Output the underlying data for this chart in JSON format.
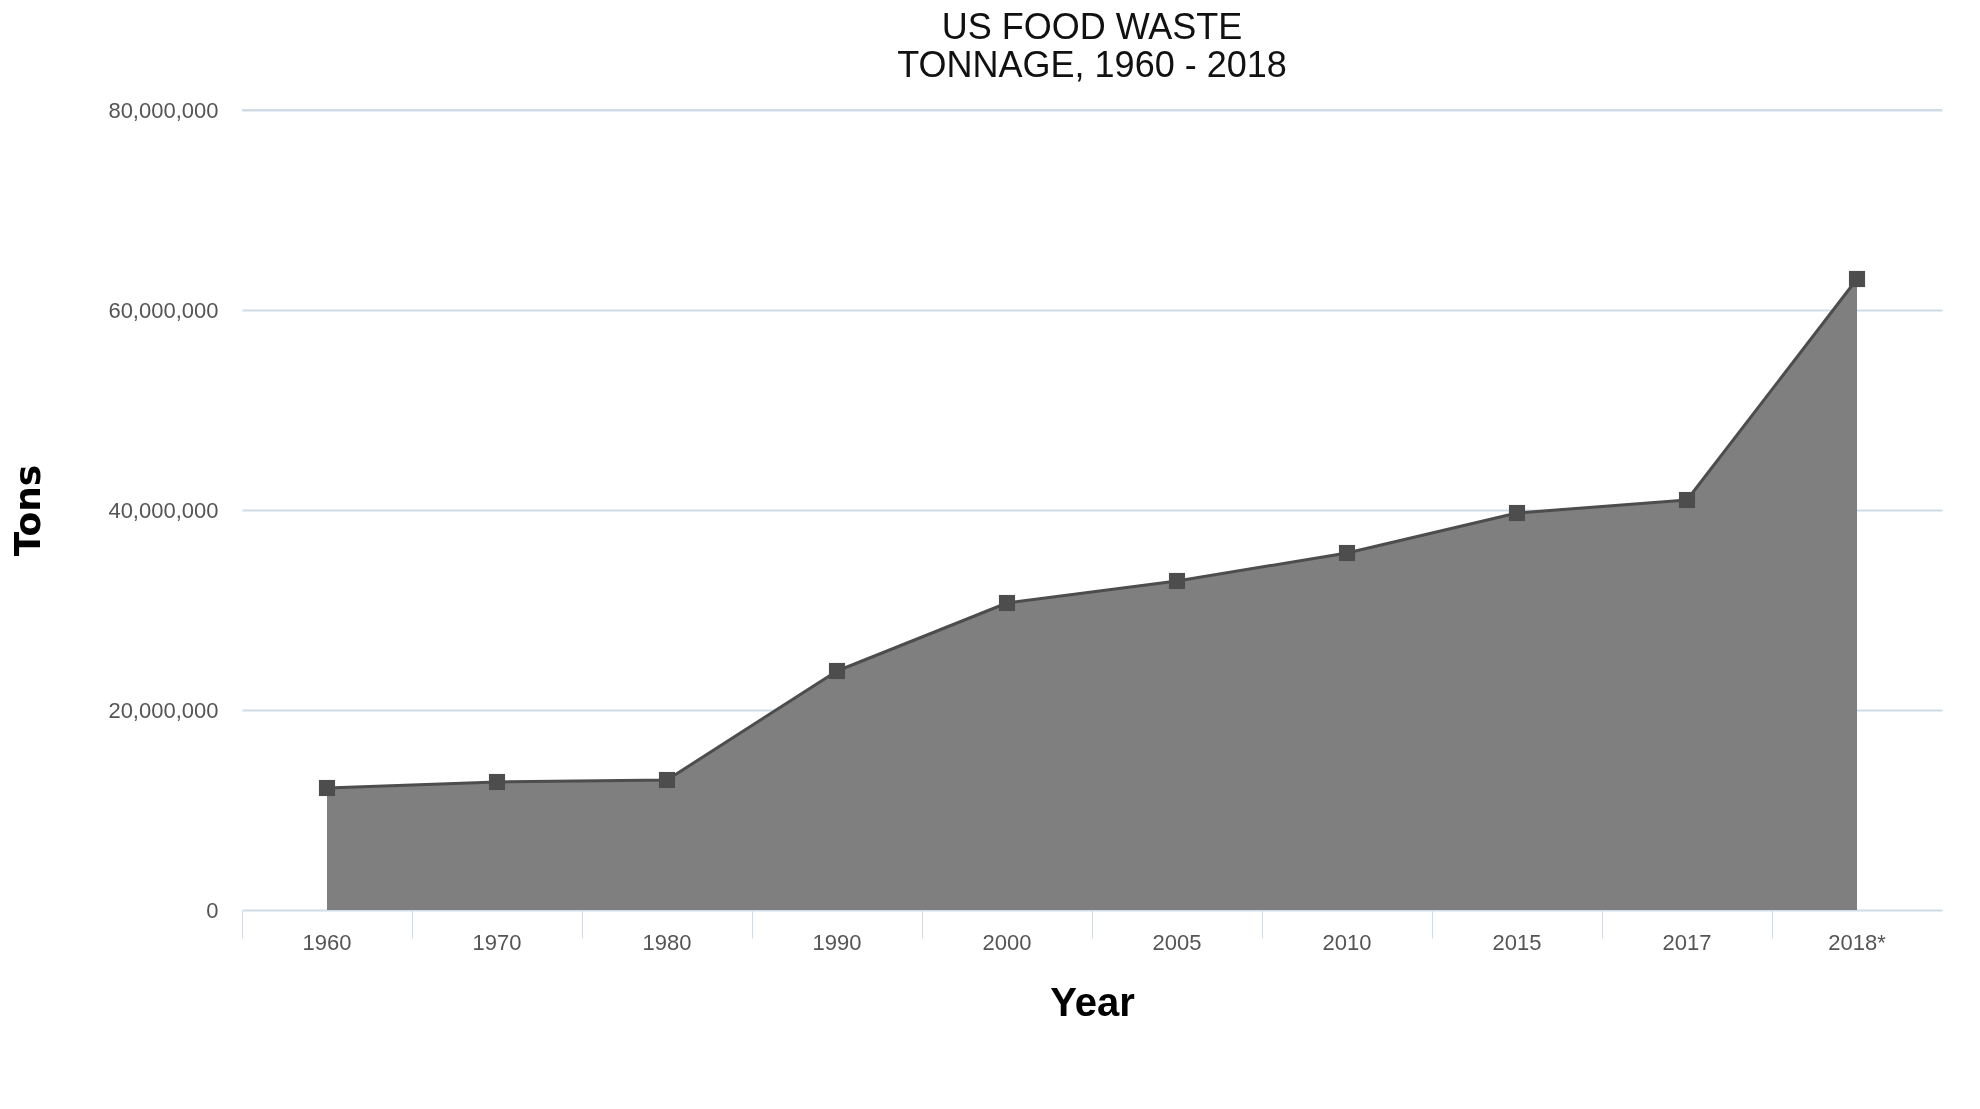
{
  "chart_data": {
    "type": "area",
    "title": "US FOOD WASTE\nTONNAGE, 1960 - 2018",
    "xlabel": "Year",
    "ylabel": "Tons",
    "categories": [
      "1960",
      "1970",
      "1980",
      "1990",
      "2000",
      "2005",
      "2010",
      "2015",
      "2017",
      "2018*"
    ],
    "series": [
      {
        "color": "#7f7f7f",
        "values": [
          12200000,
          12800000,
          13000000,
          23900000,
          30700000,
          32900000,
          35700000,
          39700000,
          41000000,
          63100000
        ]
      }
    ],
    "ylim": [
      0,
      80000000
    ],
    "yticks": [
      0,
      {
        "value": 20000000,
        "label": "20,000,000"
      },
      {
        "value": 40000000,
        "label": "40,000,000"
      },
      {
        "value": 60000000,
        "label": "60,000,000"
      },
      {
        "value": 80000000,
        "label": "80,000,000"
      }
    ],
    "grid": "y",
    "marker": "square",
    "line_style": "solid"
  }
}
